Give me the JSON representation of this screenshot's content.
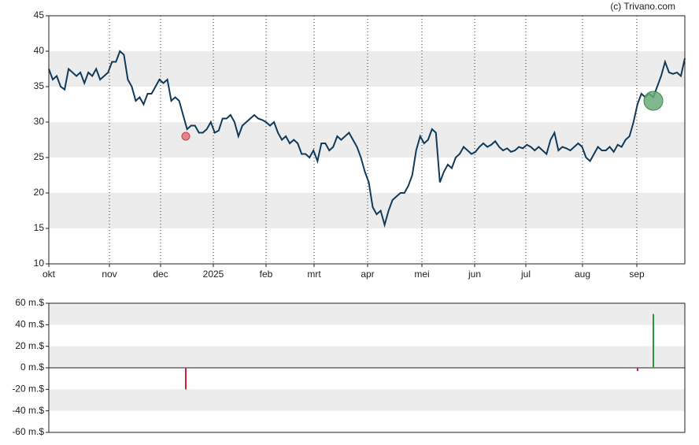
{
  "chart_data": [
    {
      "type": "line",
      "credit": "(c) Trivano.com",
      "x_labels": [
        "okt",
        "nov",
        "dec",
        "2025",
        "feb",
        "mrt",
        "apr",
        "mei",
        "jun",
        "jul",
        "aug",
        "sep"
      ],
      "values": [
        37.5,
        36,
        36.5,
        35,
        34.6,
        37.5,
        37,
        36.5,
        37,
        35.5,
        37,
        36.5,
        37.5,
        36,
        36.5,
        37,
        38.5,
        38.5,
        40,
        39.5,
        36,
        35,
        33,
        33.5,
        32.5,
        34,
        34,
        35,
        36,
        35.5,
        36,
        33,
        33.5,
        33,
        31,
        29,
        29.5,
        29.5,
        28.5,
        28.5,
        29,
        30,
        28.5,
        28.8,
        30.5,
        30.5,
        31,
        30,
        28,
        29.5,
        30,
        30.5,
        31,
        30.5,
        30.3,
        30,
        29.5,
        30,
        28.5,
        27.5,
        28,
        27,
        27.5,
        27,
        25.5,
        25.5,
        25,
        26,
        24.5,
        27,
        27,
        26,
        26.5,
        28,
        27.5,
        28,
        28.5,
        27.5,
        26.5,
        25,
        23,
        21.5,
        18,
        17,
        17.5,
        15.5,
        17.5,
        19,
        19.5,
        20,
        20,
        21,
        22.5,
        26,
        28,
        27,
        27.5,
        29,
        28.5,
        21.5,
        23,
        24,
        23.5,
        25,
        25.5,
        26.5,
        26,
        25.5,
        25.8,
        26.5,
        27,
        26.5,
        26.8,
        27.3,
        26.5,
        26,
        26.3,
        25.8,
        26,
        26.5,
        26.3,
        26.8,
        26.5,
        26,
        26.5,
        26,
        25.5,
        27.5,
        28.5,
        26,
        26.5,
        26.3,
        26,
        26.5,
        27,
        26.5,
        25,
        24.5,
        25.5,
        26.5,
        26,
        26,
        26.5,
        25.8,
        26.8,
        26.5,
        27.5,
        28,
        30,
        32.5,
        34,
        33.5,
        34,
        33.5,
        35,
        36.5,
        38.5,
        37,
        36.8,
        37,
        36.5,
        39
      ],
      "color": "#123a5a",
      "markers": [
        {
          "value": 28,
          "color": "#e8707c"
        },
        {
          "value": 33,
          "color": "#6aaa7a"
        }
      ],
      "ylim": [
        10,
        45
      ],
      "yticks": [
        10,
        15,
        20,
        25,
        30,
        35,
        40,
        45
      ],
      "grid": true
    },
    {
      "type": "bar",
      "values": [
        -20,
        -3,
        50
      ],
      "colors": [
        "#d42030",
        "#d42030",
        "#2a9a3a"
      ],
      "ylim": [
        -60,
        60
      ],
      "yticks": [
        {
          "value": -60,
          "label": "-60 m.$"
        },
        {
          "value": -40,
          "label": "-40 m.$"
        },
        {
          "value": -20,
          "label": "-20 m.$"
        },
        {
          "value": 0,
          "label": "0 m.$"
        },
        {
          "value": 20,
          "label": "20 m.$"
        },
        {
          "value": 40,
          "label": "40 m.$"
        },
        {
          "value": 60,
          "label": "60 m.$"
        }
      ],
      "grid": true
    }
  ]
}
